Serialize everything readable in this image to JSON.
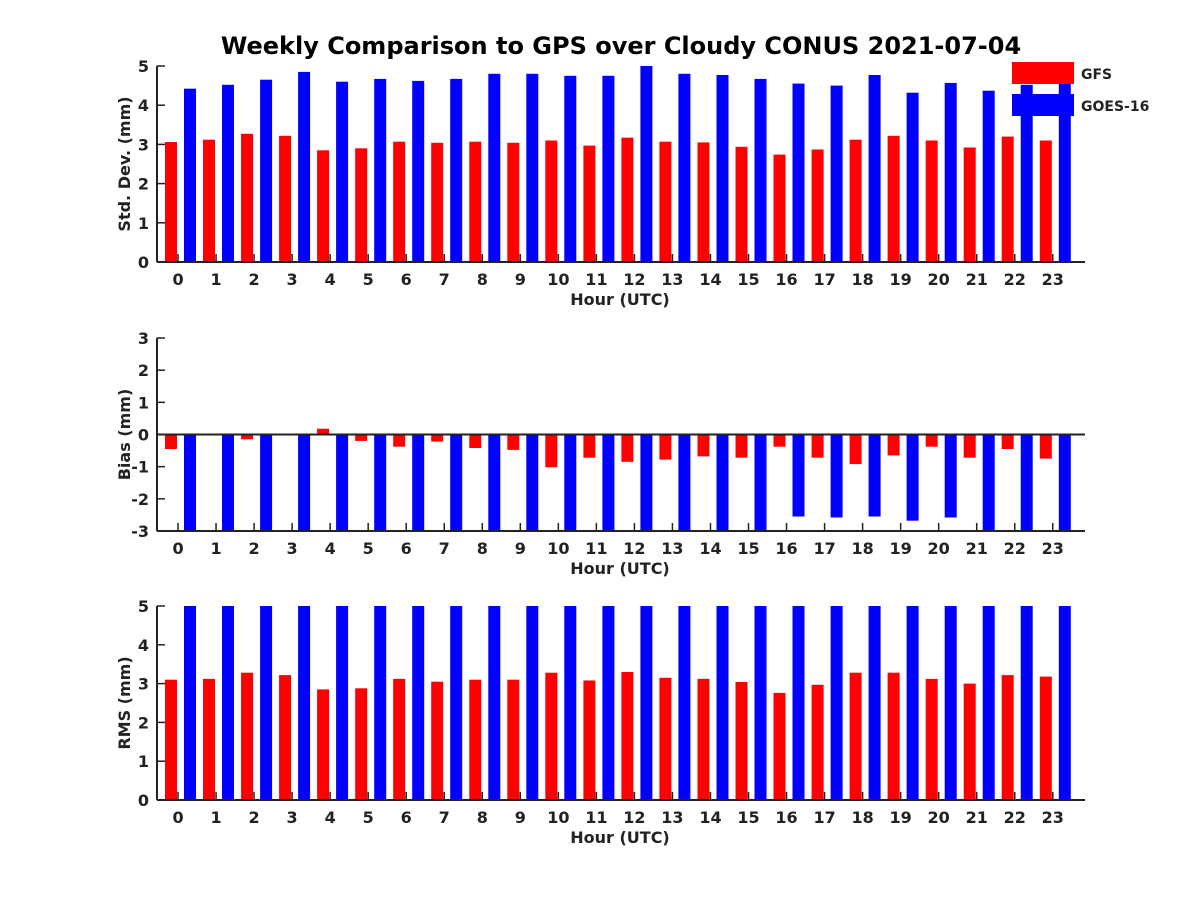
{
  "title": "Weekly Comparison to GPS over Cloudy CONUS 2021-07-04",
  "colors": {
    "gfs": "#ff0000",
    "goes": "#0000ff",
    "axis": "#222222"
  },
  "legend": {
    "placement": "top-right",
    "entries": [
      "GFS",
      "GOES-16"
    ]
  },
  "chart_data": [
    {
      "type": "bar",
      "xlabel": "Hour (UTC)",
      "ylabel": "Std. Dev. (mm)",
      "ylim": [
        0,
        5
      ],
      "yticks": [
        "0",
        "1",
        "2",
        "3",
        "4",
        "5"
      ],
      "categories": [
        "0",
        "1",
        "2",
        "3",
        "4",
        "5",
        "6",
        "7",
        "8",
        "9",
        "10",
        "11",
        "12",
        "13",
        "14",
        "15",
        "16",
        "17",
        "18",
        "19",
        "20",
        "21",
        "22",
        "23"
      ],
      "series": [
        {
          "name": "GFS",
          "values": [
            3.06,
            3.12,
            3.27,
            3.22,
            2.85,
            2.9,
            3.07,
            3.04,
            3.07,
            3.04,
            3.1,
            2.97,
            3.17,
            3.07,
            3.05,
            2.94,
            2.74,
            2.87,
            3.12,
            3.22,
            3.1,
            2.92,
            3.2,
            3.1
          ]
        },
        {
          "name": "GOES-16",
          "values": [
            4.42,
            4.52,
            4.65,
            4.85,
            4.6,
            4.67,
            4.62,
            4.67,
            4.8,
            4.8,
            4.75,
            4.75,
            5.0,
            4.8,
            4.77,
            4.67,
            4.55,
            4.5,
            4.77,
            4.32,
            4.57,
            4.37,
            4.52,
            4.65
          ]
        }
      ]
    },
    {
      "type": "bar",
      "xlabel": "Hour (UTC)",
      "ylabel": "Bias (mm)",
      "ylim": [
        -3,
        3
      ],
      "yticks": [
        "-3",
        "-2",
        "-1",
        "0",
        "1",
        "2",
        "3"
      ],
      "categories": [
        "0",
        "1",
        "2",
        "3",
        "4",
        "5",
        "6",
        "7",
        "8",
        "9",
        "10",
        "11",
        "12",
        "13",
        "14",
        "15",
        "16",
        "17",
        "18",
        "19",
        "20",
        "21",
        "22",
        "23"
      ],
      "series": [
        {
          "name": "GFS",
          "values": [
            -0.45,
            0.03,
            -0.15,
            0.0,
            0.18,
            -0.2,
            -0.38,
            -0.22,
            -0.42,
            -0.48,
            -1.02,
            -0.72,
            -0.85,
            -0.78,
            -0.68,
            -0.72,
            -0.38,
            -0.72,
            -0.92,
            -0.65,
            -0.38,
            -0.72,
            -0.45,
            -0.75
          ]
        },
        {
          "name": "GOES-16",
          "values": [
            -3.0,
            -3.0,
            -3.0,
            -3.0,
            -3.0,
            -3.0,
            -3.0,
            -3.0,
            -3.0,
            -3.0,
            -3.0,
            -3.0,
            -3.0,
            -3.0,
            -3.0,
            -3.0,
            -2.55,
            -2.58,
            -2.55,
            -2.68,
            -2.58,
            -3.0,
            -3.0,
            -3.0
          ]
        }
      ]
    },
    {
      "type": "bar",
      "xlabel": "Hour (UTC)",
      "ylabel": "RMS (mm)",
      "ylim": [
        0,
        5
      ],
      "yticks": [
        "0",
        "1",
        "2",
        "3",
        "4",
        "5"
      ],
      "categories": [
        "0",
        "1",
        "2",
        "3",
        "4",
        "5",
        "6",
        "7",
        "8",
        "9",
        "10",
        "11",
        "12",
        "13",
        "14",
        "15",
        "16",
        "17",
        "18",
        "19",
        "20",
        "21",
        "22",
        "23"
      ],
      "series": [
        {
          "name": "GFS",
          "values": [
            3.1,
            3.12,
            3.28,
            3.22,
            2.85,
            2.88,
            3.12,
            3.05,
            3.1,
            3.1,
            3.28,
            3.08,
            3.3,
            3.15,
            3.12,
            3.04,
            2.76,
            2.97,
            3.28,
            3.28,
            3.12,
            3.0,
            3.22,
            3.18
          ]
        },
        {
          "name": "GOES-16",
          "values": [
            5,
            5,
            5,
            5,
            5,
            5,
            5,
            5,
            5,
            5,
            5,
            5,
            5,
            5,
            5,
            5,
            5,
            5,
            5,
            5,
            5,
            5,
            5,
            5
          ]
        }
      ]
    }
  ]
}
